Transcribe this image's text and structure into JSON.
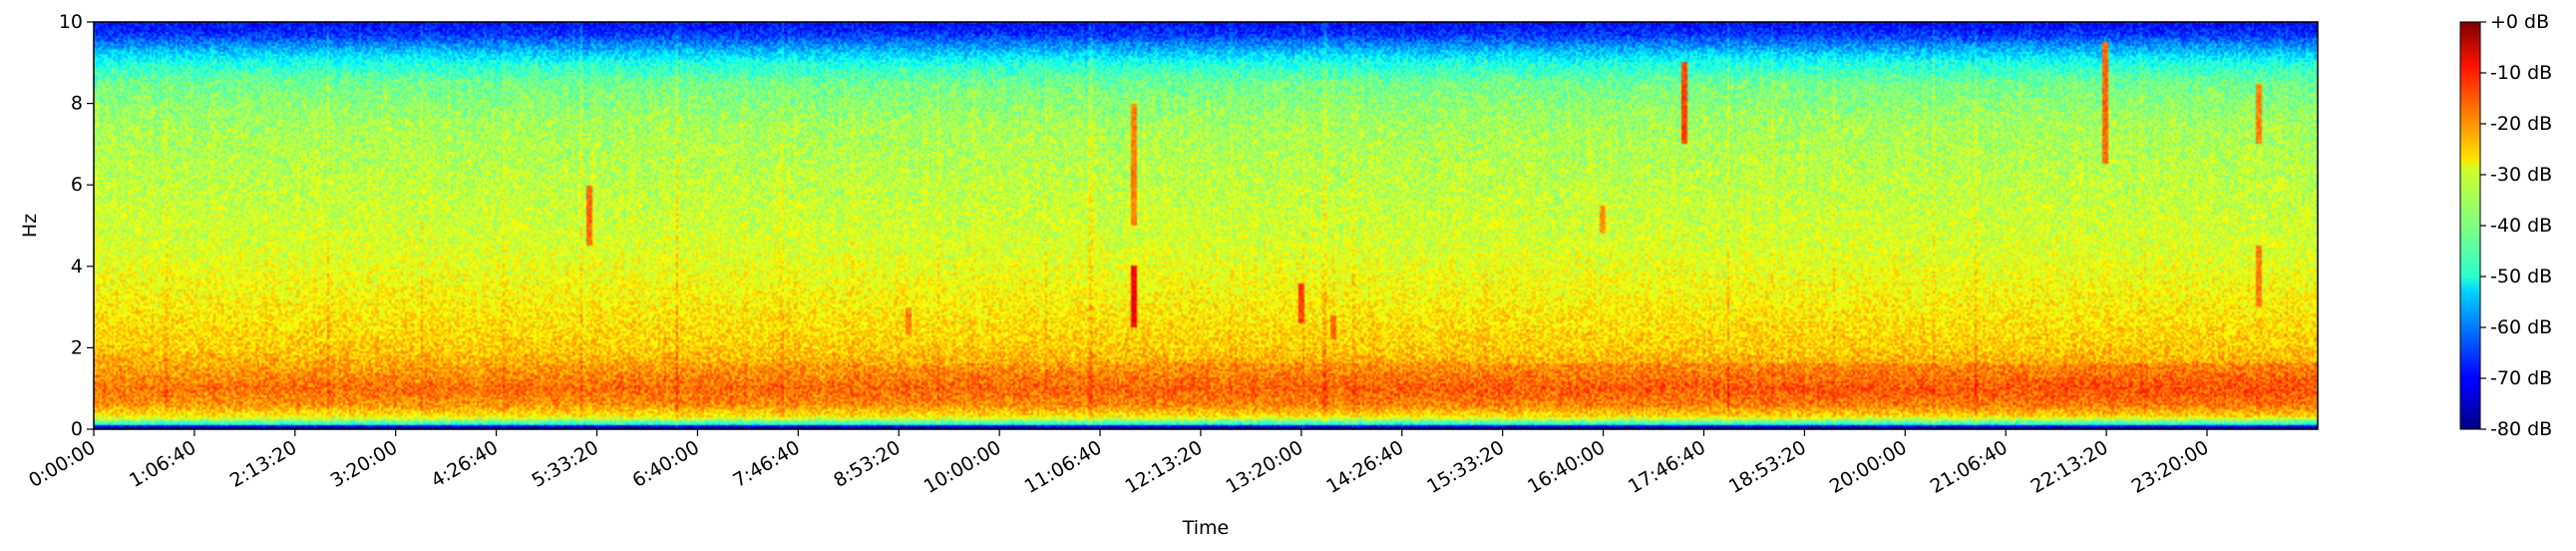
{
  "chart_data": {
    "type": "heatmap",
    "title": "",
    "xlabel": "Time",
    "ylabel": "Hz",
    "x_range_seconds": [
      0,
      88400
    ],
    "x_ticks": [
      "0:00:00",
      "1:06:40",
      "2:13:20",
      "3:20:00",
      "4:26:40",
      "5:33:20",
      "6:40:00",
      "7:46:40",
      "8:53:20",
      "10:00:00",
      "11:06:40",
      "12:13:20",
      "13:20:00",
      "14:26:40",
      "15:33:20",
      "16:40:00",
      "17:46:40",
      "18:53:20",
      "20:00:00",
      "21:06:40",
      "22:13:20",
      "23:20:00"
    ],
    "x_tick_values_seconds": [
      0,
      4000,
      8000,
      12000,
      16000,
      20000,
      24000,
      28000,
      32000,
      36000,
      40000,
      44000,
      48000,
      52000,
      56000,
      60000,
      64000,
      68000,
      72000,
      76000,
      80000,
      84000
    ],
    "y_range": [
      0,
      10
    ],
    "y_ticks": [
      "0",
      "2",
      "4",
      "6",
      "8",
      "10"
    ],
    "y_tick_values": [
      0,
      2,
      4,
      6,
      8,
      10
    ],
    "grid": false,
    "colormap": "jet",
    "colorbar": {
      "range_db": [
        -80,
        0
      ],
      "labels": [
        "+0 dB",
        "-10 dB",
        "-20 dB",
        "-30 dB",
        "-40 dB",
        "-50 dB",
        "-60 dB",
        "-70 dB",
        "-80 dB"
      ],
      "values": [
        0,
        -10,
        -20,
        -30,
        -40,
        -50,
        -60,
        -70,
        -80
      ]
    },
    "band_profile_db": {
      "frequency_hz": [
        0,
        0.08,
        0.12,
        0.3,
        0.6,
        1.0,
        1.4,
        2.0,
        3.0,
        4.5,
        6.0,
        7.5,
        8.5,
        9.0,
        9.4,
        9.7,
        10.0
      ],
      "level_db": [
        -75,
        -72,
        -48,
        -30,
        -22,
        -19,
        -22,
        -26,
        -29,
        -33,
        -35,
        -37,
        -41,
        -48,
        -58,
        -66,
        -70
      ]
    },
    "transient_events": [
      {
        "time": "5:29:00",
        "freq_range_hz": [
          4.5,
          6.0
        ],
        "level_db": -18
      },
      {
        "time": "9:00:00",
        "freq_range_hz": [
          2.3,
          3.0
        ],
        "level_db": -20
      },
      {
        "time": "11:29:00",
        "freq_range_hz": [
          2.5,
          4.0
        ],
        "level_db": -10
      },
      {
        "time": "11:29:00",
        "freq_range_hz": [
          5.0,
          8.0
        ],
        "level_db": -20
      },
      {
        "time": "13:20:00",
        "freq_range_hz": [
          2.6,
          3.6
        ],
        "level_db": -15
      },
      {
        "time": "13:41:00",
        "freq_range_hz": [
          2.2,
          2.8
        ],
        "level_db": -18
      },
      {
        "time": "16:40:00",
        "freq_range_hz": [
          4.8,
          5.5
        ],
        "level_db": -22
      },
      {
        "time": "17:34:00",
        "freq_range_hz": [
          7.0,
          9.0
        ],
        "level_db": -15
      },
      {
        "time": "22:13:00",
        "freq_range_hz": [
          6.5,
          9.5
        ],
        "level_db": -18
      },
      {
        "time": "23:55:00",
        "freq_range_hz": [
          3.0,
          4.5
        ],
        "level_db": -20
      },
      {
        "time": "23:55:00",
        "freq_range_hz": [
          7.0,
          8.5
        ],
        "level_db": -20
      }
    ]
  }
}
